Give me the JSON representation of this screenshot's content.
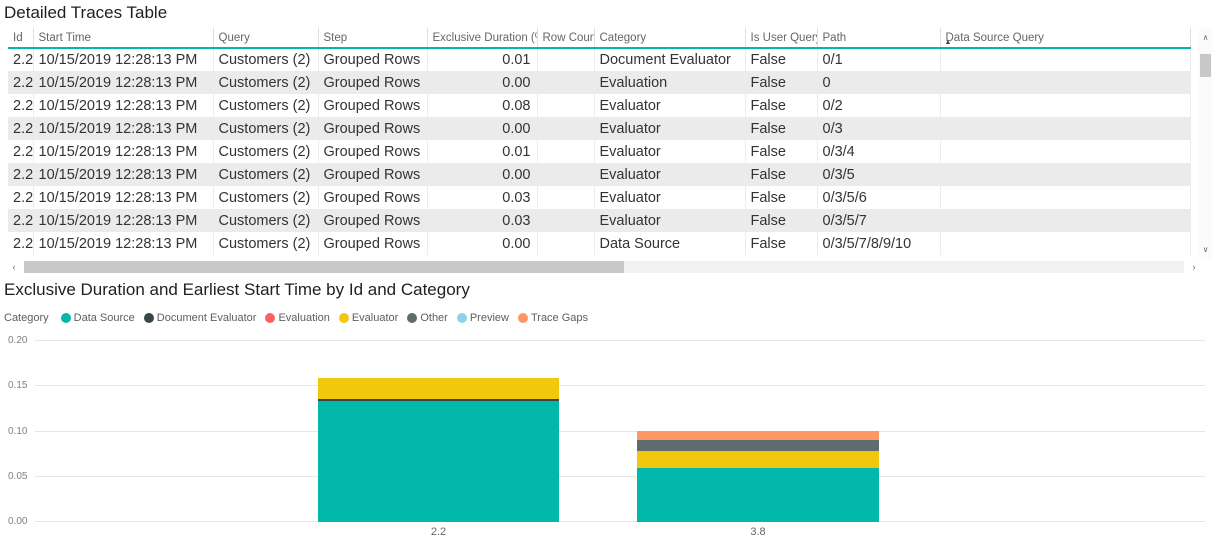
{
  "accent_teal": "#01B8AA",
  "icons": {
    "scroll_up": "∧",
    "scroll_down": "∨",
    "scroll_left": "‹",
    "scroll_right": "›",
    "sort_ascending": "▲"
  },
  "table": {
    "title": "Detailed Traces Table",
    "columns": [
      {
        "label": "Id",
        "align": "left"
      },
      {
        "label": "Start Time",
        "align": "left"
      },
      {
        "label": "Query",
        "align": "left"
      },
      {
        "label": "Step",
        "align": "left"
      },
      {
        "label": "Exclusive Duration (%)",
        "align": "right"
      },
      {
        "label": "Row Count",
        "align": "right"
      },
      {
        "label": "Category",
        "align": "left"
      },
      {
        "label": "Is User Query",
        "align": "left"
      },
      {
        "label": "Path",
        "align": "left"
      },
      {
        "label": "Data Source Query",
        "align": "left",
        "sorted": "ascending"
      }
    ],
    "rows": [
      [
        "2.2",
        "10/15/2019 12:28:13 PM",
        "Customers (2)",
        "Grouped Rows",
        "0.01",
        "",
        "Document Evaluator",
        "False",
        "0/1",
        ""
      ],
      [
        "2.2",
        "10/15/2019 12:28:13 PM",
        "Customers (2)",
        "Grouped Rows",
        "0.00",
        "",
        "Evaluation",
        "False",
        "0",
        ""
      ],
      [
        "2.2",
        "10/15/2019 12:28:13 PM",
        "Customers (2)",
        "Grouped Rows",
        "0.08",
        "",
        "Evaluator",
        "False",
        "0/2",
        ""
      ],
      [
        "2.2",
        "10/15/2019 12:28:13 PM",
        "Customers (2)",
        "Grouped Rows",
        "0.00",
        "",
        "Evaluator",
        "False",
        "0/3",
        ""
      ],
      [
        "2.2",
        "10/15/2019 12:28:13 PM",
        "Customers (2)",
        "Grouped Rows",
        "0.01",
        "",
        "Evaluator",
        "False",
        "0/3/4",
        ""
      ],
      [
        "2.2",
        "10/15/2019 12:28:13 PM",
        "Customers (2)",
        "Grouped Rows",
        "0.00",
        "",
        "Evaluator",
        "False",
        "0/3/5",
        ""
      ],
      [
        "2.2",
        "10/15/2019 12:28:13 PM",
        "Customers (2)",
        "Grouped Rows",
        "0.03",
        "",
        "Evaluator",
        "False",
        "0/3/5/6",
        ""
      ],
      [
        "2.2",
        "10/15/2019 12:28:13 PM",
        "Customers (2)",
        "Grouped Rows",
        "0.03",
        "",
        "Evaluator",
        "False",
        "0/3/5/7",
        ""
      ],
      [
        "2.2",
        "10/15/2019 12:28:13 PM",
        "Customers (2)",
        "Grouped Rows",
        "0.00",
        "",
        "Data Source",
        "False",
        "0/3/5/7/8/9/10",
        ""
      ]
    ]
  },
  "chart_data": {
    "type": "bar",
    "stacked": true,
    "title": "Exclusive Duration and Earliest Start Time by Id and Category",
    "legend_label": "Category",
    "legend_position": "top",
    "grid": true,
    "categories": [
      "2.2",
      "3.8"
    ],
    "series": [
      {
        "name": "Data Source",
        "color": "#01B8AA",
        "values": [
          0.134,
          0.06
        ]
      },
      {
        "name": "Document Evaluator",
        "color": "#374649",
        "values": [
          0.002,
          0
        ]
      },
      {
        "name": "Evaluation",
        "color": "#FD625E",
        "values": [
          0,
          0
        ]
      },
      {
        "name": "Evaluator",
        "color": "#F2C80F",
        "values": [
          0.023,
          0.019
        ]
      },
      {
        "name": "Other",
        "color": "#5F6B6D",
        "values": [
          0,
          0.012
        ]
      },
      {
        "name": "Preview",
        "color": "#8AD4EB",
        "values": [
          0,
          0
        ]
      },
      {
        "name": "Trace Gaps",
        "color": "#FE9666",
        "values": [
          0,
          0.01
        ]
      }
    ],
    "xlabel": "",
    "ylabel": "",
    "ylim": [
      0,
      0.2
    ],
    "yticks": [
      0,
      0.05,
      0.1,
      0.15,
      0.2
    ],
    "ytick_labels": [
      "0.00",
      "0.05",
      "0.10",
      "0.15",
      "0.20"
    ]
  }
}
